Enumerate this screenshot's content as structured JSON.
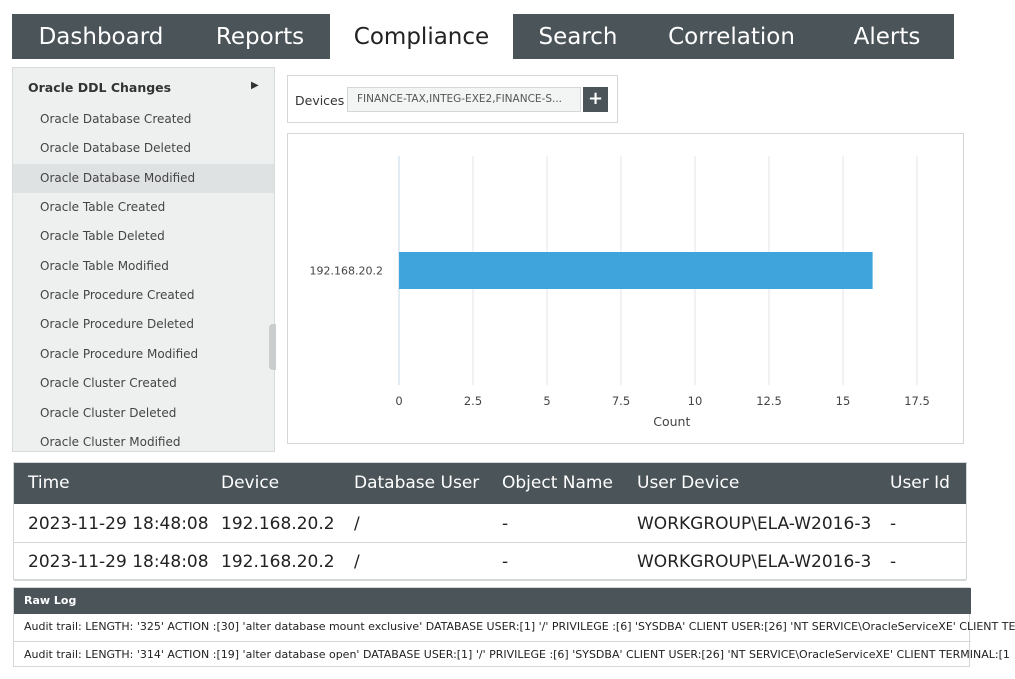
{
  "nav": {
    "tabs": [
      "Dashboard",
      "Reports",
      "Compliance",
      "Search",
      "Correlation",
      "Alerts"
    ],
    "active_tab": 2
  },
  "sidebar": {
    "title": "Oracle DDL Changes",
    "selected_item": 2,
    "items": [
      "Oracle Database Created",
      "Oracle Database Deleted",
      "Oracle Database Modified",
      "Oracle Table Created",
      "Oracle Table Deleted",
      "Oracle Table Modified",
      "Oracle Procedure Created",
      "Oracle Procedure Deleted",
      "Oracle Procedure Modified",
      "Oracle Cluster Created",
      "Oracle Cluster Deleted",
      "Oracle Cluster Modified"
    ]
  },
  "devices": {
    "label": "Devices",
    "value": "FINANCE-TAX,INTEG-EXE2,FINANCE-S..."
  },
  "chart_data": {
    "type": "bar",
    "orientation": "horizontal",
    "categories": [
      "192.168.20.2"
    ],
    "values": [
      16
    ],
    "color": "#3fa4dc",
    "xlim": [
      0,
      18.5
    ],
    "xticks": [
      0,
      2.5,
      5,
      7.5,
      10,
      12.5,
      15,
      17.5
    ],
    "xlabel": "Count",
    "grid": true
  },
  "table": {
    "headers": [
      "Time",
      "Device",
      "Database User",
      "Object Name",
      "User Device",
      "User Id"
    ],
    "rows": [
      [
        "2023-11-29 18:48:08",
        "192.168.20.2",
        "/",
        "-",
        "WORKGROUP\\ELA-W2016-3",
        "-"
      ],
      [
        "2023-11-29 18:48:08",
        "192.168.20.2",
        "/",
        "-",
        "WORKGROUP\\ELA-W2016-3",
        "-"
      ]
    ]
  },
  "raw_log": {
    "title": "Raw Log",
    "lines": [
      "Audit trail: LENGTH: '325' ACTION :[30] 'alter database mount exclusive' DATABASE USER:[1] '/' PRIVILEGE :[6] 'SYSDBA' CLIENT USER:[26] 'NT SERVICE\\OracleServiceXE' CLIENT TE",
      "Audit trail: LENGTH: '314' ACTION :[19] 'alter database open' DATABASE USER:[1] '/' PRIVILEGE :[6] 'SYSDBA' CLIENT USER:[26] 'NT SERVICE\\OracleServiceXE' CLIENT TERMINAL:[1"
    ]
  }
}
